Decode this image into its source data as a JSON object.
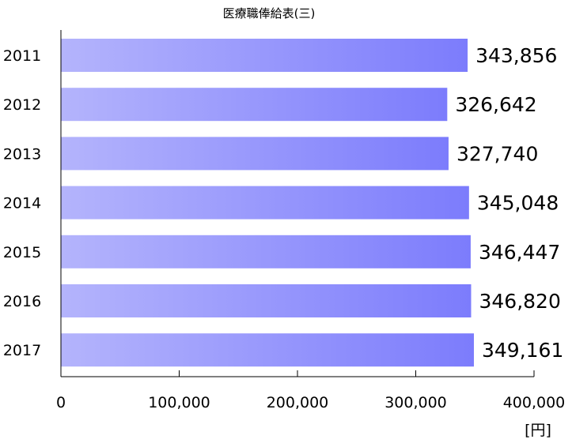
{
  "chart_data": {
    "type": "bar",
    "orientation": "horizontal",
    "title": "医療職俸給表(三)",
    "unit": "[円]",
    "xlabel": "",
    "ylabel": "",
    "categories": [
      "2011",
      "2012",
      "2013",
      "2014",
      "2015",
      "2016",
      "2017"
    ],
    "values": [
      343856,
      326642,
      327740,
      345048,
      346447,
      346820,
      349161
    ],
    "value_labels": [
      "343,856",
      "326,642",
      "327,740",
      "345,048",
      "346,447",
      "346,820",
      "349,161"
    ],
    "xlim": [
      0,
      400000
    ],
    "x_ticks": [
      0,
      100000,
      200000,
      300000,
      400000
    ],
    "x_tick_labels": [
      "0",
      "100,000",
      "200,000",
      "300,000",
      "400,000"
    ],
    "grid": false,
    "legend": "none",
    "bar_color_start": "#b4b4fc",
    "bar_color_end": "#7c7cfc"
  }
}
